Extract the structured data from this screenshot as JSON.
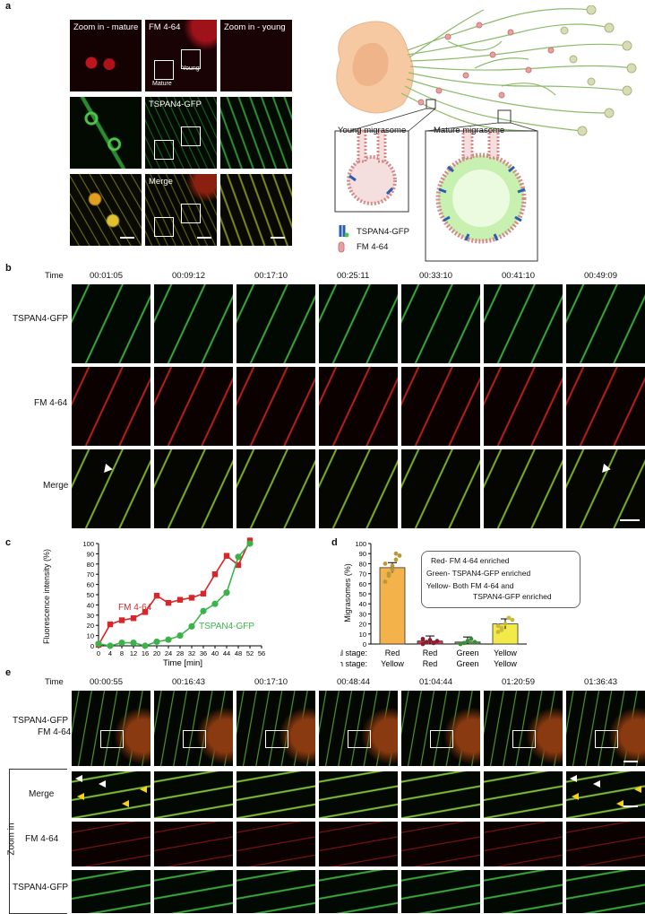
{
  "panel_labels": {
    "a": "a",
    "b": "b",
    "c": "c",
    "d": "d",
    "e": "e"
  },
  "a": {
    "titles": {
      "zoom_mature": "Zoom in - mature",
      "fm": "FM 4-64",
      "zoom_young": "Zoom in - young",
      "tspan": "TSPAN4-GFP",
      "merge": "Merge",
      "young_box": "Young",
      "mature_box": "Mature"
    },
    "diagram": {
      "young_label": "Young migrasome",
      "mature_label": "Mature migrasome",
      "legend_tspan": "TSPAN4-GFP",
      "legend_fm": "FM 4-64"
    }
  },
  "b": {
    "time_label": "Time",
    "times": [
      "00:01:05",
      "00:09:12",
      "00:17:10",
      "00:25:11",
      "00:33:10",
      "00:41:10",
      "00:49:09"
    ],
    "rows": [
      "TSPAN4-GFP",
      "FM 4-64",
      "Merge"
    ]
  },
  "c": {
    "ylabel": "Fluorescence intensity (%)",
    "xlabel": "Time [min]",
    "series_fm": "FM 4-64",
    "series_tspan": "TSPAN4-GFP",
    "colors": {
      "fm": "#d8262a",
      "tspan": "#3cb34a"
    }
  },
  "d": {
    "ylabel": "Migrasomes (%)",
    "legend": [
      "Red- FM 4-64 enriched",
      "Green- TSPAN4-GFP enriched",
      "Yellow- Both FM 4-64 and",
      "TSPAN4-GFP enriched"
    ],
    "initial_label": "Initial stage:",
    "growth_label": "Growth stage:",
    "initial": [
      "Red",
      "Red",
      "Green",
      "Yellow"
    ],
    "growth": [
      "Yellow",
      "Red",
      "Green",
      "Yellow"
    ],
    "colors": [
      "#f3b24a",
      "#d23a4f",
      "#58a848",
      "#f2ea4a"
    ]
  },
  "e": {
    "time_label": "Time",
    "times": [
      "00:00:55",
      "00:16:43",
      "00:17:10",
      "00:48:44",
      "01:04:44",
      "01:20:59",
      "01:36:43"
    ],
    "top_label_1": "TSPAN4-GFP",
    "top_label_2": "FM 4-64",
    "rows": [
      "Merge",
      "FM 4-64",
      "TSPAN4-GFP"
    ],
    "zoom_label": "Zoom in"
  },
  "chart_data": [
    {
      "type": "line",
      "title": "",
      "xlabel": "Time [min]",
      "ylabel": "Fluorescence intensity (%)",
      "xlim": [
        0,
        56
      ],
      "ylim": [
        0,
        100
      ],
      "xticks": [
        0,
        4,
        8,
        12,
        16,
        20,
        24,
        28,
        32,
        36,
        40,
        44,
        48,
        52,
        56
      ],
      "yticks": [
        0,
        10,
        20,
        30,
        40,
        50,
        60,
        70,
        80,
        90,
        100
      ],
      "series": [
        {
          "name": "FM 4-64",
          "x": [
            0,
            4,
            8,
            12,
            16,
            20,
            24,
            28,
            32,
            36,
            40,
            44,
            48,
            52
          ],
          "y": [
            1,
            21,
            25,
            27,
            33,
            49,
            42,
            45,
            47,
            51,
            70,
            88,
            79,
            103
          ]
        },
        {
          "name": "TSPAN4-GFP",
          "x": [
            0,
            4,
            8,
            12,
            16,
            20,
            24,
            28,
            32,
            36,
            40,
            44,
            48,
            52
          ],
          "y": [
            2,
            0,
            3,
            3,
            0,
            4,
            6,
            10,
            19,
            34,
            41,
            52,
            87,
            100
          ]
        }
      ]
    },
    {
      "type": "bar",
      "title": "",
      "ylabel": "Migrasomes (%)",
      "ylim": [
        0,
        100
      ],
      "yticks": [
        0,
        10,
        20,
        30,
        40,
        50,
        60,
        70,
        80,
        90,
        100
      ],
      "categories": [
        "Red Yellow",
        "Red Red",
        "Green Green",
        "Yellow Yellow"
      ],
      "values": [
        76,
        3,
        2,
        20
      ]
    }
  ]
}
